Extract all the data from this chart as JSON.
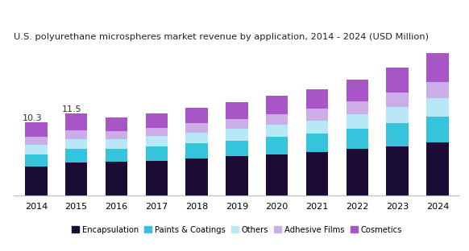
{
  "title": "U.S. polyurethane microspheres market revenue by application, 2014 - 2024 (USD Million)",
  "years": [
    2014,
    2015,
    2016,
    2017,
    2018,
    2019,
    2020,
    2021,
    2022,
    2023,
    2024
  ],
  "annotations": {
    "2014": "10.3",
    "2015": "11.5"
  },
  "segments": {
    "Encapsulation": {
      "color": "#1b0c35",
      "values": [
        4.1,
        4.6,
        4.7,
        4.9,
        5.2,
        5.5,
        5.8,
        6.1,
        6.5,
        6.9,
        7.4
      ]
    },
    "Paints & Coatings": {
      "color": "#35c4dc",
      "values": [
        1.7,
        1.9,
        1.9,
        2.0,
        2.1,
        2.2,
        2.4,
        2.6,
        2.9,
        3.2,
        3.6
      ]
    },
    "Others": {
      "color": "#b8e8f5",
      "values": [
        1.3,
        1.4,
        1.3,
        1.4,
        1.5,
        1.6,
        1.7,
        1.8,
        2.0,
        2.3,
        2.6
      ]
    },
    "Adhesive Films": {
      "color": "#cbaee8",
      "values": [
        1.1,
        1.2,
        1.1,
        1.2,
        1.3,
        1.4,
        1.5,
        1.6,
        1.8,
        2.0,
        2.3
      ]
    },
    "Cosmetics": {
      "color": "#a855c8",
      "values": [
        2.1,
        2.4,
        1.9,
        2.0,
        2.2,
        2.4,
        2.6,
        2.8,
        3.0,
        3.5,
        4.0
      ]
    }
  },
  "legend_order": [
    "Encapsulation",
    "Paints & Coatings",
    "Others",
    "Adhesive Films",
    "Cosmetics"
  ],
  "ylim": [
    0,
    21
  ],
  "background_color": "#ffffff"
}
